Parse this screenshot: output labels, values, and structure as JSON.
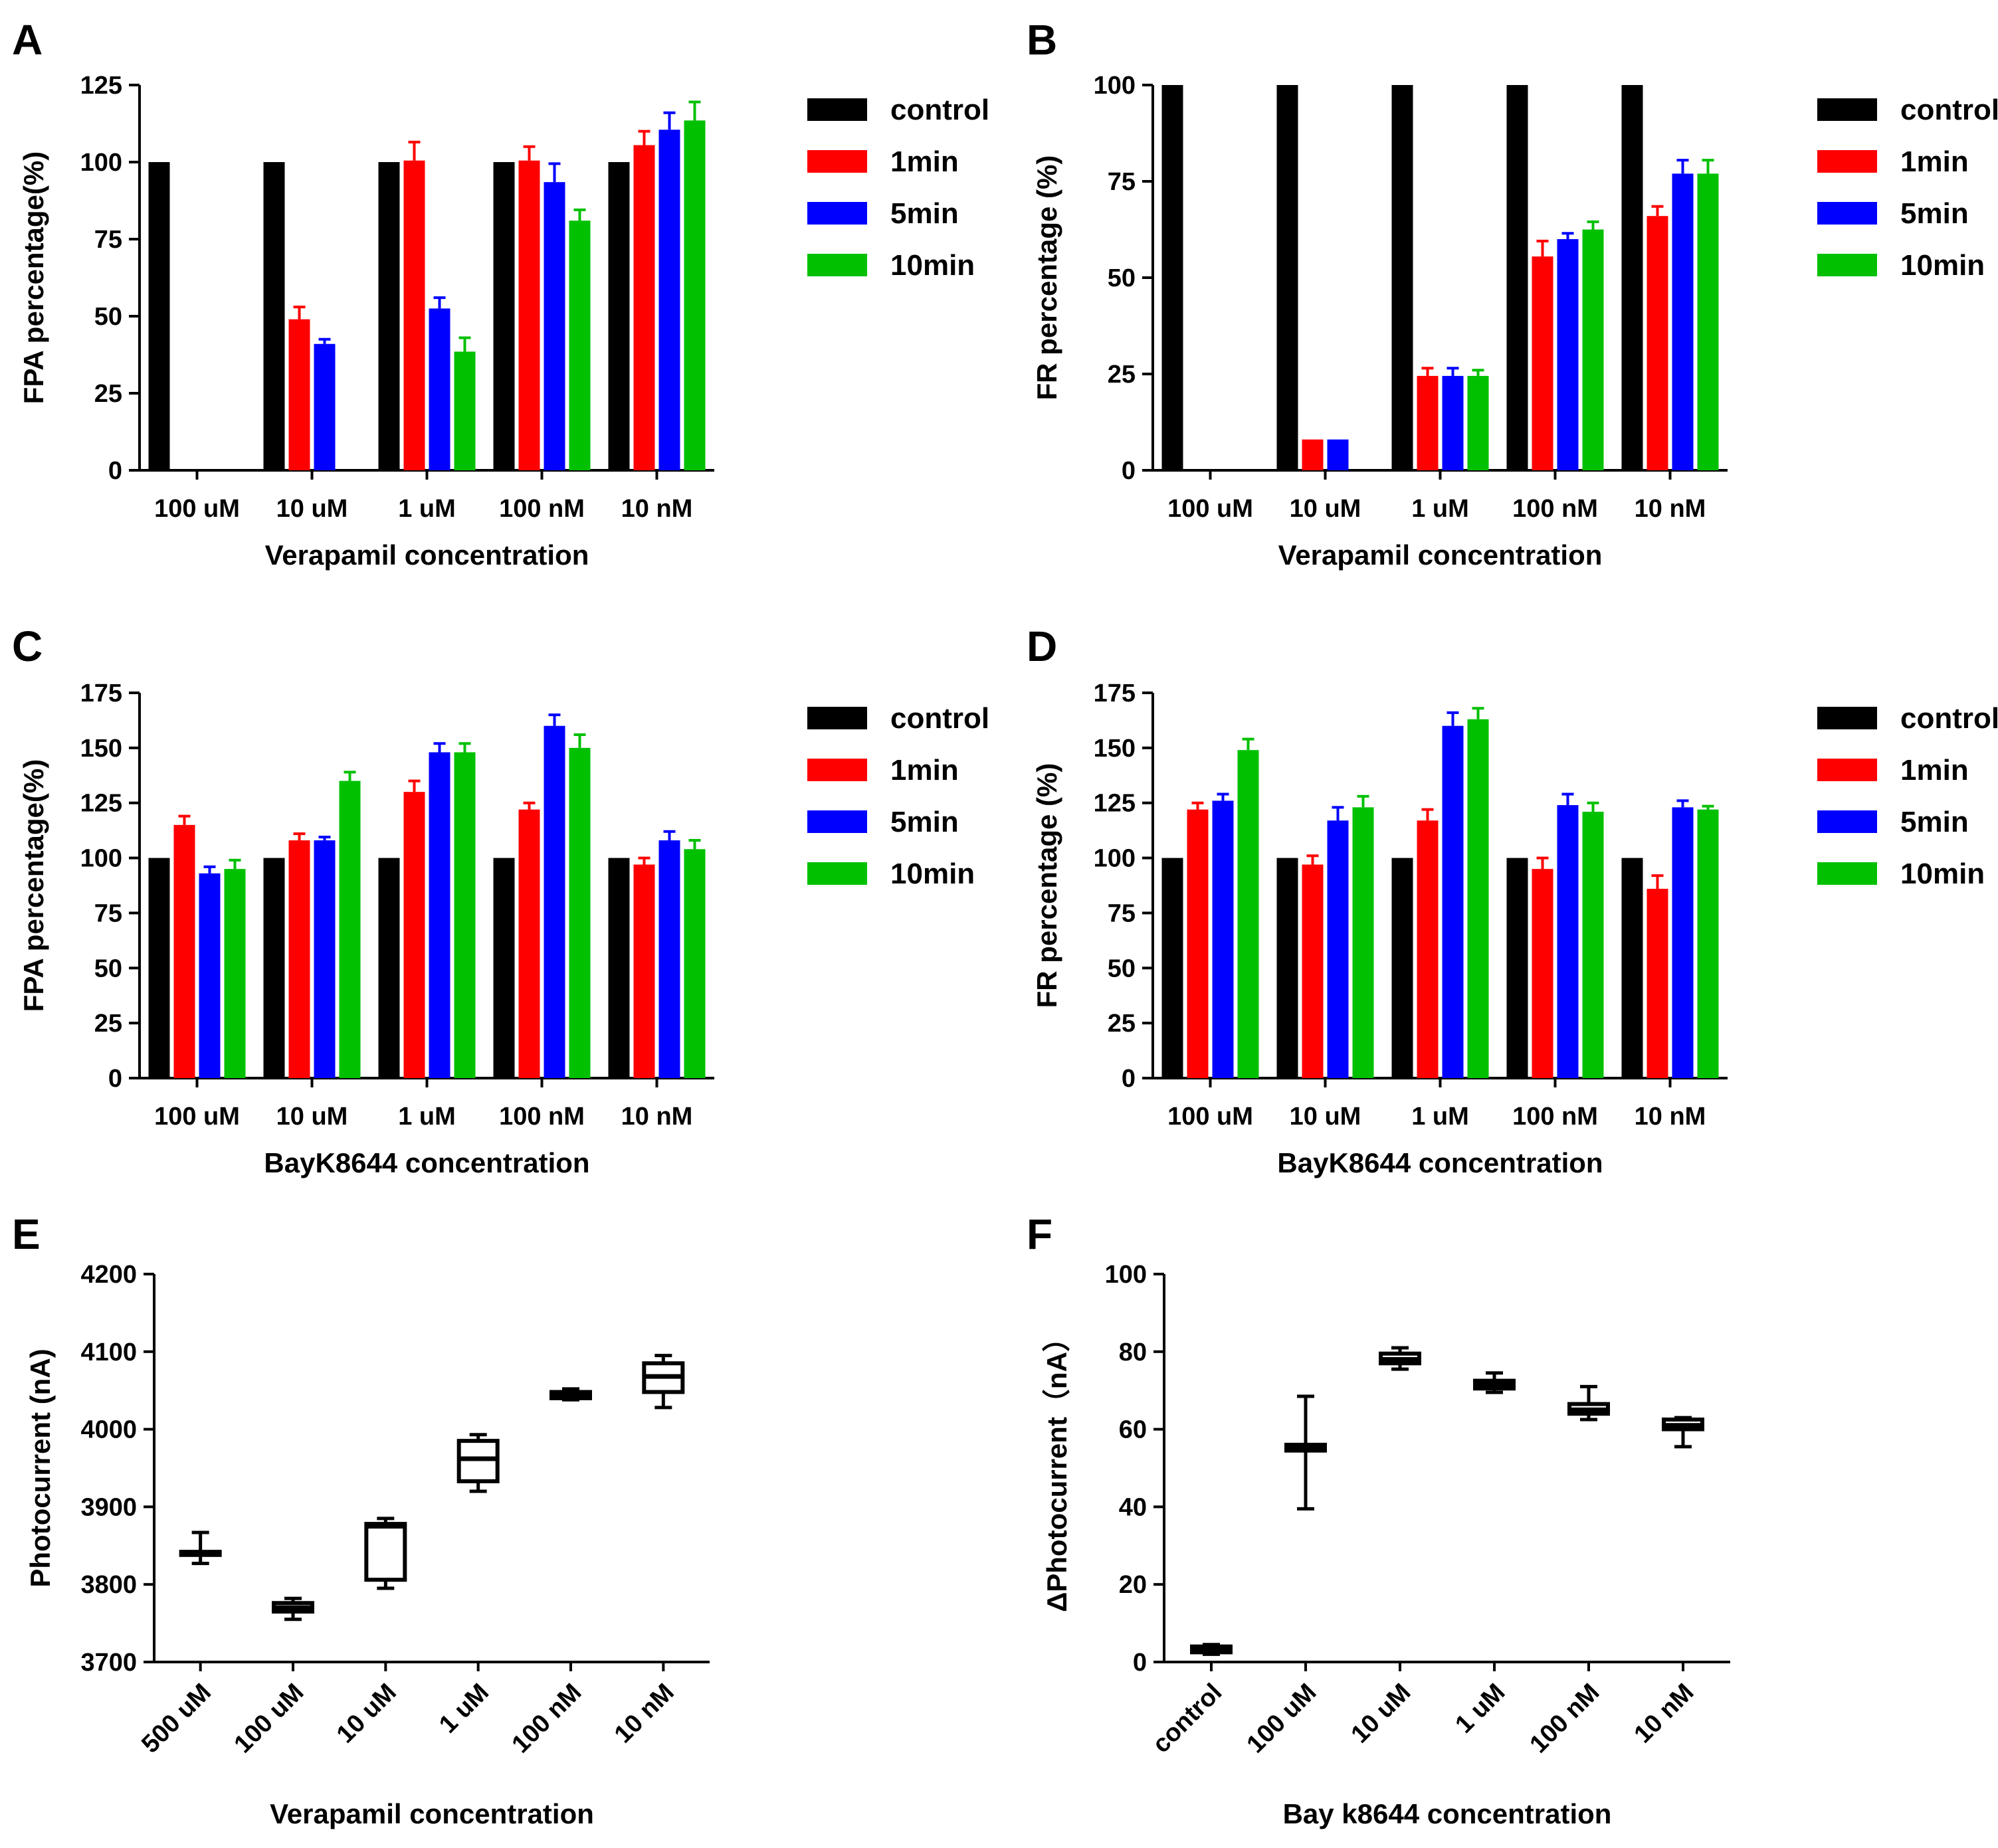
{
  "colors": {
    "control": "#000000",
    "1min": "#ff0000",
    "5min": "#0000ff",
    "10min": "#00c000"
  },
  "chart_data": [
    {
      "id": "A",
      "letter": "A",
      "type": "bar",
      "xlabel": "Verapamil concentration",
      "ylabel": "FPA percentage(%)",
      "ylim": [
        0,
        125
      ],
      "yticks": [
        "0",
        "25",
        "50",
        "75",
        "100",
        "125"
      ],
      "categories": [
        "100 uM",
        "10 uM",
        "1 uM",
        "100 nM",
        "10 nM"
      ],
      "legend": [
        "control",
        "1min",
        "5min",
        "10min"
      ],
      "series": [
        {
          "name": "control",
          "values": [
            100,
            100,
            100,
            100,
            100
          ],
          "errors": [
            0,
            0,
            0,
            0,
            0
          ]
        },
        {
          "name": "1min",
          "values": [
            0,
            49,
            100.5,
            100.5,
            105.5
          ],
          "errors": [
            0,
            4,
            6,
            4.5,
            4.5
          ]
        },
        {
          "name": "5min",
          "values": [
            0,
            41,
            52.5,
            93.5,
            110.5
          ],
          "errors": [
            0,
            1.5,
            3.5,
            6,
            5.5
          ]
        },
        {
          "name": "10min",
          "values": [
            0,
            0,
            38.5,
            81,
            113.5
          ],
          "errors": [
            0,
            0,
            4.5,
            3.5,
            6
          ]
        }
      ]
    },
    {
      "id": "B",
      "letter": "B",
      "type": "bar",
      "xlabel": "Verapamil concentration",
      "ylabel": "FR percentage (%)",
      "ylim": [
        0,
        100
      ],
      "yticks": [
        "0",
        "25",
        "50",
        "75",
        "100"
      ],
      "categories": [
        "100 uM",
        "10 uM",
        "1 uM",
        "100 nM",
        "10 nM"
      ],
      "legend": [
        "control",
        "1min",
        "5min",
        "10min"
      ],
      "series": [
        {
          "name": "control",
          "values": [
            100,
            100,
            100,
            100,
            100
          ],
          "errors": [
            0,
            0,
            0,
            0,
            0
          ]
        },
        {
          "name": "1min",
          "values": [
            0,
            8,
            24.5,
            55.5,
            66
          ],
          "errors": [
            0,
            0,
            2,
            4,
            2.5
          ]
        },
        {
          "name": "5min",
          "values": [
            0,
            8,
            24.5,
            60,
            77
          ],
          "errors": [
            0,
            0,
            2,
            1.5,
            3.5
          ]
        },
        {
          "name": "10min",
          "values": [
            0,
            0,
            24.5,
            62.5,
            77
          ],
          "errors": [
            0,
            0,
            1.5,
            2,
            3.5
          ]
        }
      ]
    },
    {
      "id": "C",
      "letter": "C",
      "type": "bar",
      "xlabel": "BayK8644 concentration",
      "ylabel": "FPA percentage(%)",
      "ylim": [
        0,
        175
      ],
      "yticks": [
        "0",
        "25",
        "50",
        "75",
        "100",
        "125",
        "150",
        "175"
      ],
      "categories": [
        "100 uM",
        "10 uM",
        "1 uM",
        "100 nM",
        "10 nM"
      ],
      "legend": [
        "control",
        "1min",
        "5min",
        "10min"
      ],
      "series": [
        {
          "name": "control",
          "values": [
            100,
            100,
            100,
            100,
            100
          ],
          "errors": [
            0,
            0,
            0,
            0,
            0
          ]
        },
        {
          "name": "1min",
          "values": [
            115,
            108,
            130,
            122,
            97
          ],
          "errors": [
            4,
            3,
            5,
            3,
            3
          ]
        },
        {
          "name": "5min",
          "values": [
            93,
            108,
            148,
            160,
            108
          ],
          "errors": [
            3,
            1.5,
            4,
            5,
            4
          ]
        },
        {
          "name": "10min",
          "values": [
            95,
            135,
            148,
            150,
            104
          ],
          "errors": [
            4,
            4,
            4,
            6,
            4
          ]
        }
      ]
    },
    {
      "id": "D",
      "letter": "D",
      "type": "bar",
      "xlabel": "BayK8644 concentration",
      "ylabel": "FR percentage (%)",
      "ylim": [
        0,
        175
      ],
      "yticks": [
        "0",
        "25",
        "50",
        "75",
        "100",
        "125",
        "150",
        "175"
      ],
      "categories": [
        "100 uM",
        "10 uM",
        "1 uM",
        "100 nM",
        "10 nM"
      ],
      "legend": [
        "control",
        "1min",
        "5min",
        "10min"
      ],
      "series": [
        {
          "name": "control",
          "values": [
            100,
            100,
            100,
            100,
            100
          ],
          "errors": [
            0,
            0,
            0,
            0,
            0
          ]
        },
        {
          "name": "1min",
          "values": [
            122,
            97,
            117,
            95,
            86
          ],
          "errors": [
            3,
            4,
            5,
            5,
            6
          ]
        },
        {
          "name": "5min",
          "values": [
            126,
            117,
            160,
            124,
            123
          ],
          "errors": [
            3,
            6,
            6,
            5,
            3
          ]
        },
        {
          "name": "10min",
          "values": [
            149,
            123,
            163,
            121,
            122
          ],
          "errors": [
            5,
            5,
            5,
            4,
            1.5
          ]
        }
      ]
    },
    {
      "id": "E",
      "letter": "E",
      "type": "box",
      "xlabel": "Verapamil concentration",
      "ylabel": "Photocurrent (nA)",
      "ylim": [
        3700,
        4200
      ],
      "yticks": [
        "3700",
        "3800",
        "3900",
        "4000",
        "4100",
        "4200"
      ],
      "categories": [
        "500 uM",
        "100 uM",
        "10 uM",
        "1 uM",
        "100 nM",
        "10 nM"
      ],
      "boxes": [
        {
          "min": 3827,
          "q1": 3838,
          "median": 3840,
          "q3": 3842,
          "max": 3867
        },
        {
          "min": 3755,
          "q1": 3765,
          "median": 3770,
          "q3": 3776,
          "max": 3782
        },
        {
          "min": 3795,
          "q1": 3806,
          "median": 3875,
          "q3": 3878,
          "max": 3885
        },
        {
          "min": 3920,
          "q1": 3933,
          "median": 3962,
          "q3": 3985,
          "max": 3993
        },
        {
          "min": 4038,
          "q1": 4040,
          "median": 4044,
          "q3": 4048,
          "max": 4052
        },
        {
          "min": 4028,
          "q1": 4048,
          "median": 4068,
          "q3": 4085,
          "max": 4095
        }
      ]
    },
    {
      "id": "F",
      "letter": "F",
      "type": "box",
      "xlabel": "Bay k8644 concentration",
      "ylabel": "ΔPhotocurrent（nA）",
      "ylim": [
        0,
        100
      ],
      "yticks": [
        "0",
        "20",
        "40",
        "60",
        "80",
        "100"
      ],
      "categories": [
        "control",
        "100 uM",
        "10 uM",
        "1 uM",
        "100 nM",
        "10 nM"
      ],
      "boxes": [
        {
          "min": 2,
          "q1": 2.5,
          "median": 3,
          "q3": 4,
          "max": 4.5
        },
        {
          "min": 39.5,
          "q1": 54.5,
          "median": 55,
          "q3": 56,
          "max": 68.5
        },
        {
          "min": 75.5,
          "q1": 77,
          "median": 78,
          "q3": 79.5,
          "max": 81
        },
        {
          "min": 69.5,
          "q1": 70.5,
          "median": 71.5,
          "q3": 72.5,
          "max": 74.5
        },
        {
          "min": 62.5,
          "q1": 64,
          "median": 65,
          "q3": 66.5,
          "max": 71
        },
        {
          "min": 55.5,
          "q1": 60,
          "median": 61,
          "q3": 62.5,
          "max": 63
        }
      ]
    }
  ]
}
